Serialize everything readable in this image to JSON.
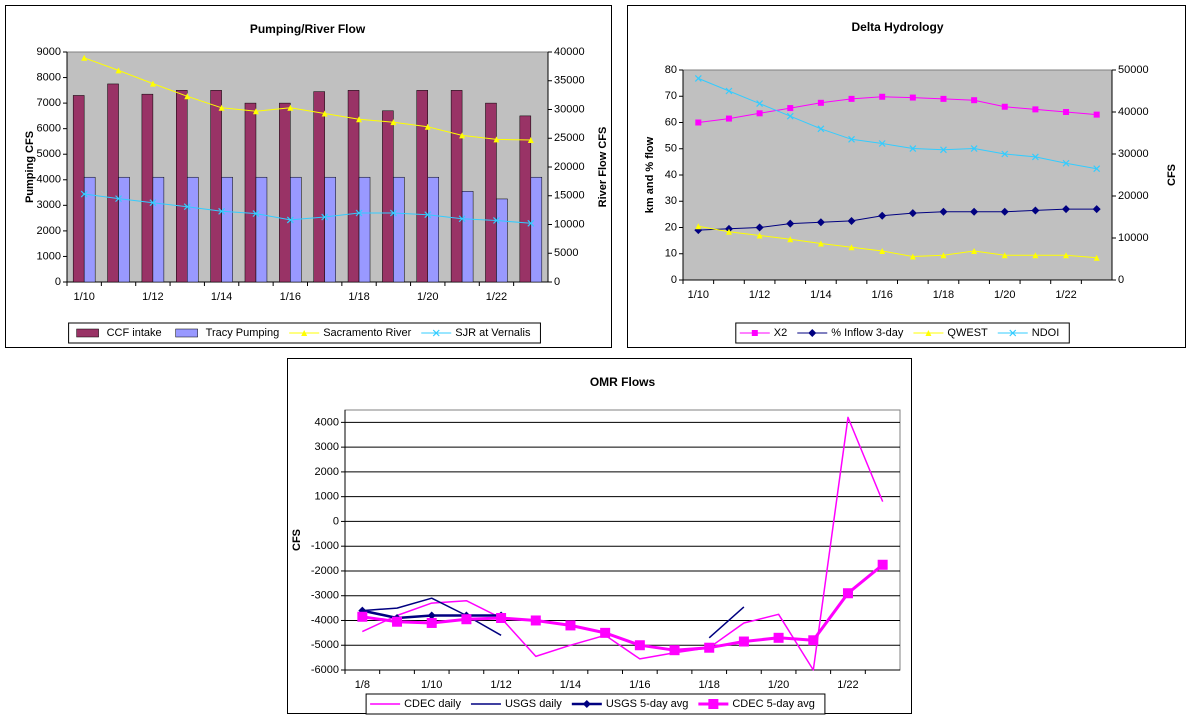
{
  "chart_data": [
    {
      "type": "bar_line",
      "title": "Pumping/River Flow",
      "y_label": "Pumping CFS",
      "y2_label": "River Flow CFS",
      "categories": [
        "1/10",
        null,
        "1/12",
        null,
        "1/14",
        null,
        "1/16",
        null,
        "1/18",
        null,
        "1/20",
        null,
        "1/22",
        null
      ],
      "ylim": [
        0,
        9000
      ],
      "yticks": [
        0,
        1000,
        2000,
        3000,
        4000,
        5000,
        6000,
        7000,
        8000,
        9000
      ],
      "y2lim": [
        0,
        40000
      ],
      "y2ticks": [
        0,
        5000,
        10000,
        15000,
        20000,
        25000,
        30000,
        35000,
        40000
      ],
      "plot_background": "#c0c0c0",
      "grid": false,
      "legend": "bottom",
      "series": [
        {
          "name": "CCF intake",
          "type": "bar",
          "color": "#993366",
          "values": [
            7300,
            7750,
            7350,
            7500,
            7500,
            7000,
            7000,
            7450,
            7500,
            6700,
            7500,
            7500,
            7000,
            6500
          ]
        },
        {
          "name": "Tracy Pumping",
          "type": "bar",
          "color": "#9999ff",
          "values": [
            4100,
            4100,
            4100,
            4100,
            4100,
            4100,
            4100,
            4100,
            4100,
            4100,
            4100,
            3550,
            3250,
            4100
          ]
        },
        {
          "name": "Sacramento River",
          "type": "line",
          "axis": "y2",
          "color": "#ffff00",
          "marker": "triangle",
          "values": [
            39000,
            36800,
            34500,
            32300,
            30300,
            29700,
            30300,
            29300,
            28300,
            27800,
            27000,
            25500,
            24800,
            24700
          ]
        },
        {
          "name": "SJR at Vernalis",
          "type": "line",
          "axis": "y2",
          "color": "#33ccff",
          "marker": "x",
          "values": [
            15300,
            14500,
            13800,
            13100,
            12300,
            11900,
            10800,
            11300,
            12000,
            12000,
            11700,
            11000,
            10700,
            10200
          ]
        }
      ]
    },
    {
      "type": "line",
      "title": "Delta Hydrology",
      "y_label": "km and % flow",
      "y2_label": "CFS",
      "categories": [
        "1/10",
        null,
        "1/12",
        null,
        "1/14",
        null,
        "1/16",
        null,
        "1/18",
        null,
        "1/20",
        null,
        "1/22",
        null
      ],
      "ylim": [
        0,
        80
      ],
      "yticks": [
        0,
        10,
        20,
        30,
        40,
        50,
        60,
        70,
        80
      ],
      "y2lim": [
        0,
        50000
      ],
      "y2ticks": [
        0,
        10000,
        20000,
        30000,
        40000,
        50000
      ],
      "plot_background": "#c0c0c0",
      "grid": false,
      "legend": "bottom",
      "series": [
        {
          "name": "X2",
          "type": "line",
          "color": "#ff00ff",
          "marker": "square",
          "values": [
            60,
            61.5,
            63.5,
            65.5,
            67.5,
            69,
            69.8,
            69.5,
            69,
            68.5,
            66,
            65,
            64,
            63
          ]
        },
        {
          "name": "% Inflow 3-day",
          "type": "line",
          "color": "#000080",
          "marker": "diamond",
          "values": [
            19,
            19.5,
            20,
            21.5,
            22,
            22.5,
            24.5,
            25.5,
            26,
            26,
            26,
            26.5,
            27,
            27
          ]
        },
        {
          "name": "QWEST",
          "type": "line",
          "axis": "y2",
          "color": "#ffff00",
          "marker": "triangle",
          "values": [
            12800,
            11500,
            10600,
            9700,
            8700,
            7800,
            6900,
            5600,
            5900,
            6900,
            5900,
            5900,
            5900,
            5300
          ]
        },
        {
          "name": "NDOI",
          "type": "line",
          "axis": "y2",
          "color": "#33ccff",
          "marker": "x",
          "values": [
            48000,
            45000,
            42000,
            39000,
            36000,
            33500,
            32500,
            31300,
            31000,
            31300,
            30000,
            29300,
            27800,
            26500
          ]
        }
      ]
    },
    {
      "type": "line",
      "title": "OMR Flows",
      "y_label": "CFS",
      "categories": [
        "1/8",
        null,
        "1/10",
        null,
        "1/12",
        null,
        "1/14",
        null,
        "1/16",
        null,
        "1/18",
        null,
        "1/20",
        null,
        "1/22",
        null
      ],
      "ylim": [
        -6000,
        4500
      ],
      "yticks": [
        -6000,
        -5000,
        -4000,
        -3000,
        -2000,
        -1000,
        0,
        1000,
        2000,
        3000,
        4000
      ],
      "plot_background": "#ffffff",
      "grid": true,
      "legend": "bottom",
      "series": [
        {
          "name": "CDEC daily",
          "type": "line",
          "color": "#ff00ff",
          "marker": "none",
          "line_width": 1.5,
          "values": [
            -4450,
            -3800,
            -3300,
            -3200,
            -3900,
            -5450,
            -5000,
            -4600,
            -5550,
            -5300,
            -5100,
            -4100,
            -3750,
            -6000,
            4200,
            800
          ]
        },
        {
          "name": "USGS daily",
          "type": "line",
          "color": "#000080",
          "marker": "none",
          "line_width": 1.5,
          "values": [
            -3600,
            -3500,
            -3100,
            -3800,
            -4600,
            null,
            null,
            null,
            null,
            null,
            -4700,
            -3450,
            null,
            null,
            null,
            null
          ]
        },
        {
          "name": "USGS 5-day avg",
          "type": "line",
          "color": "#000080",
          "marker": "diamond",
          "line_width": 2.5,
          "values": [
            -3600,
            -3900,
            -3800,
            -3800,
            -3800,
            null,
            null,
            null,
            null,
            null,
            null,
            null,
            null,
            null,
            null,
            null
          ]
        },
        {
          "name": "CDEC 5-day avg",
          "type": "line",
          "color": "#ff00ff",
          "marker": "square",
          "marker_size": 10,
          "line_width": 3,
          "values": [
            -3850,
            -4050,
            -4100,
            -3950,
            -3900,
            -4000,
            -4200,
            -4500,
            -5000,
            -5200,
            -5100,
            -4850,
            -4700,
            -4800,
            -2900,
            -1750
          ]
        }
      ]
    }
  ]
}
